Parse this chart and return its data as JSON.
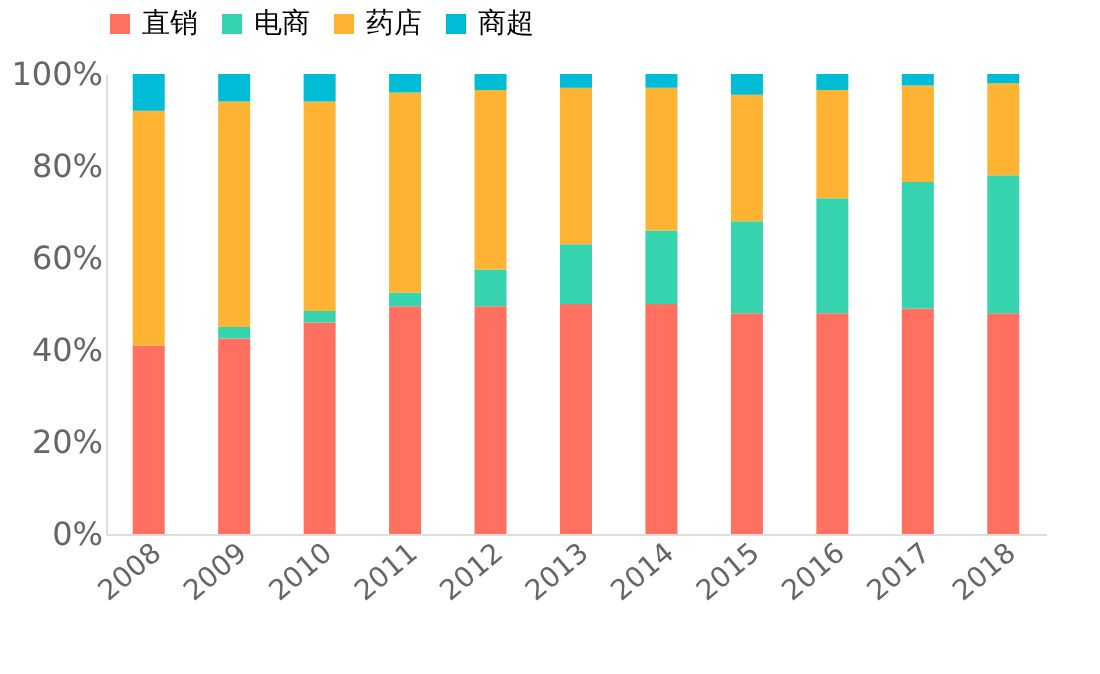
{
  "chart_data": {
    "type": "bar",
    "stacked": true,
    "categories": [
      "2008",
      "2009",
      "2010",
      "2011",
      "2012",
      "2013",
      "2014",
      "2015",
      "2016",
      "2017",
      "2018"
    ],
    "series": [
      {
        "name": "直销",
        "color": "#ff7060",
        "values": [
          41,
          42.5,
          46,
          49.5,
          49.5,
          50,
          50,
          48,
          48,
          49,
          48
        ]
      },
      {
        "name": "电商",
        "color": "#36d4ae",
        "values": [
          0,
          2.5,
          2.5,
          3,
          8,
          13,
          16,
          20,
          25,
          27.5,
          30
        ]
      },
      {
        "name": "药店",
        "color": "#ffb332",
        "values": [
          51,
          49,
          45.5,
          43.5,
          39,
          34,
          31,
          27.5,
          23.5,
          21,
          20
        ]
      },
      {
        "name": "商超",
        "color": "#00bcd4",
        "values": [
          8,
          6,
          6,
          4,
          3.5,
          3,
          3,
          4.5,
          3.5,
          2.5,
          2
        ]
      }
    ],
    "ylim": [
      0,
      100
    ],
    "yticks": [
      {
        "value": 0,
        "label": "0%"
      },
      {
        "value": 20,
        "label": "20%"
      },
      {
        "value": 40,
        "label": "40%"
      },
      {
        "value": 60,
        "label": "60%"
      },
      {
        "value": 80,
        "label": "80%"
      },
      {
        "value": 100,
        "label": "100%"
      }
    ],
    "grid": false,
    "legend": "top"
  }
}
